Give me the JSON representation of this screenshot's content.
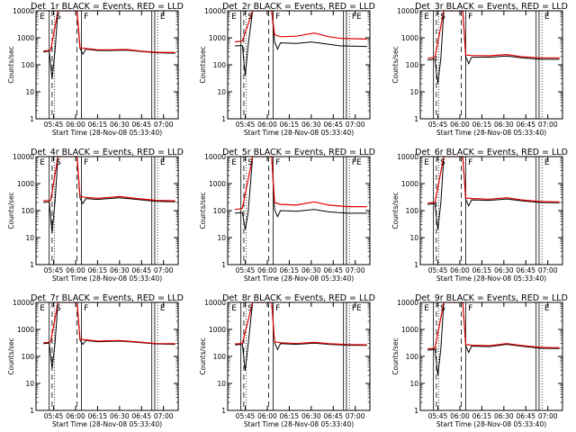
{
  "chart_data": {
    "type": "line",
    "yscale": "log",
    "ylim": [
      1,
      10000
    ],
    "yticks": [
      "1",
      "10",
      "100",
      "1000",
      "10000"
    ],
    "xticks": [
      "05:45",
      "06:00",
      "06:15",
      "06:30",
      "06:45",
      "07:00"
    ],
    "xlabel": "Start Time (28-Nov-08 05:33:40)",
    "ylabel": "Counts/sec",
    "legend_colors": {
      "events": "#000000",
      "lld": "#e00000"
    },
    "panels": [
      {
        "title": "Det_1r BLACK = Events, RED = LLD",
        "markers": [
          "E",
          "S",
          "F",
          "E"
        ],
        "events": [
          {
            "t": "05:38",
            "v": 300
          },
          {
            "t": "05:42",
            "v": 320
          },
          {
            "t": "05:44",
            "v": 30
          },
          {
            "t": "05:46",
            "v": 350
          },
          {
            "t": "05:48",
            "v": 10000
          },
          {
            "t": "06:01",
            "v": 10000
          },
          {
            "t": "06:03",
            "v": 400
          },
          {
            "t": "06:05",
            "v": 250
          },
          {
            "t": "06:07",
            "v": 380
          },
          {
            "t": "06:15",
            "v": 340
          },
          {
            "t": "06:25",
            "v": 340
          },
          {
            "t": "06:35",
            "v": 350
          },
          {
            "t": "06:45",
            "v": 310
          },
          {
            "t": "06:55",
            "v": 280
          },
          {
            "t": "07:08",
            "v": 270
          }
        ],
        "lld": [
          {
            "t": "05:38",
            "v": 320
          },
          {
            "t": "05:43",
            "v": 350
          },
          {
            "t": "05:48",
            "v": 10000
          },
          {
            "t": "06:01",
            "v": 10000
          },
          {
            "t": "06:03",
            "v": 420
          },
          {
            "t": "06:07",
            "v": 400
          },
          {
            "t": "06:15",
            "v": 360
          },
          {
            "t": "06:25",
            "v": 360
          },
          {
            "t": "06:35",
            "v": 370
          },
          {
            "t": "06:45",
            "v": 320
          },
          {
            "t": "06:55",
            "v": 290
          },
          {
            "t": "07:08",
            "v": 285
          }
        ]
      },
      {
        "title": "Det_2r BLACK = Events, RED = LLD",
        "markers": [
          "E",
          "S",
          "F",
          "FE"
        ],
        "events": [
          {
            "t": "05:38",
            "v": 500
          },
          {
            "t": "05:43",
            "v": 520
          },
          {
            "t": "05:45",
            "v": 40
          },
          {
            "t": "05:47",
            "v": 560
          },
          {
            "t": "05:50",
            "v": 10000
          },
          {
            "t": "06:03",
            "v": 10000
          },
          {
            "t": "06:05",
            "v": 700
          },
          {
            "t": "06:07",
            "v": 380
          },
          {
            "t": "06:09",
            "v": 650
          },
          {
            "t": "06:20",
            "v": 620
          },
          {
            "t": "06:30",
            "v": 700
          },
          {
            "t": "06:40",
            "v": 600
          },
          {
            "t": "06:50",
            "v": 500
          },
          {
            "t": "07:08",
            "v": 480
          }
        ],
        "lld": [
          {
            "t": "05:38",
            "v": 700
          },
          {
            "t": "05:43",
            "v": 760
          },
          {
            "t": "05:50",
            "v": 10000
          },
          {
            "t": "06:03",
            "v": 10000
          },
          {
            "t": "06:05",
            "v": 1300
          },
          {
            "t": "06:09",
            "v": 1100
          },
          {
            "t": "06:20",
            "v": 1150
          },
          {
            "t": "06:32",
            "v": 1500
          },
          {
            "t": "06:42",
            "v": 1100
          },
          {
            "t": "06:50",
            "v": 950
          },
          {
            "t": "07:08",
            "v": 900
          }
        ]
      },
      {
        "title": "Det_3r BLACK = Events, RED = LLD",
        "markers": [
          "E",
          "S",
          "F",
          "E"
        ],
        "events": [
          {
            "t": "05:38",
            "v": 150
          },
          {
            "t": "05:43",
            "v": 160
          },
          {
            "t": "05:45",
            "v": 20
          },
          {
            "t": "05:47",
            "v": 170
          },
          {
            "t": "05:49",
            "v": 10000
          },
          {
            "t": "06:02",
            "v": 10000
          },
          {
            "t": "06:04",
            "v": 200
          },
          {
            "t": "06:06",
            "v": 110
          },
          {
            "t": "06:08",
            "v": 190
          },
          {
            "t": "06:20",
            "v": 190
          },
          {
            "t": "06:32",
            "v": 210
          },
          {
            "t": "06:42",
            "v": 180
          },
          {
            "t": "06:55",
            "v": 160
          },
          {
            "t": "07:08",
            "v": 160
          }
        ],
        "lld": [
          {
            "t": "05:38",
            "v": 175
          },
          {
            "t": "05:43",
            "v": 185
          },
          {
            "t": "05:49",
            "v": 10000
          },
          {
            "t": "06:02",
            "v": 10000
          },
          {
            "t": "06:04",
            "v": 230
          },
          {
            "t": "06:08",
            "v": 220
          },
          {
            "t": "06:20",
            "v": 215
          },
          {
            "t": "06:32",
            "v": 240
          },
          {
            "t": "06:42",
            "v": 200
          },
          {
            "t": "06:55",
            "v": 180
          },
          {
            "t": "07:08",
            "v": 180
          }
        ]
      },
      {
        "title": "Det_4r BLACK = Events, RED = LLD",
        "markers": [
          "E",
          "S",
          "F",
          "E"
        ],
        "events": [
          {
            "t": "05:38",
            "v": 200
          },
          {
            "t": "05:42",
            "v": 210
          },
          {
            "t": "05:44",
            "v": 15
          },
          {
            "t": "05:46",
            "v": 230
          },
          {
            "t": "05:48",
            "v": 10000
          },
          {
            "t": "06:01",
            "v": 10000
          },
          {
            "t": "06:03",
            "v": 290
          },
          {
            "t": "06:05",
            "v": 180
          },
          {
            "t": "06:07",
            "v": 280
          },
          {
            "t": "06:15",
            "v": 260
          },
          {
            "t": "06:30",
            "v": 300
          },
          {
            "t": "06:42",
            "v": 260
          },
          {
            "t": "06:55",
            "v": 220
          },
          {
            "t": "07:08",
            "v": 210
          }
        ],
        "lld": [
          {
            "t": "05:38",
            "v": 230
          },
          {
            "t": "05:43",
            "v": 240
          },
          {
            "t": "05:48",
            "v": 10000
          },
          {
            "t": "06:01",
            "v": 10000
          },
          {
            "t": "06:03",
            "v": 330
          },
          {
            "t": "06:07",
            "v": 310
          },
          {
            "t": "06:15",
            "v": 285
          },
          {
            "t": "06:30",
            "v": 330
          },
          {
            "t": "06:42",
            "v": 280
          },
          {
            "t": "06:55",
            "v": 240
          },
          {
            "t": "07:08",
            "v": 230
          }
        ]
      },
      {
        "title": "Det_5r BLACK = Events, RED = LLD",
        "markers": [
          "E",
          "S",
          "F",
          "FE"
        ],
        "events": [
          {
            "t": "05:38",
            "v": 80
          },
          {
            "t": "05:43",
            "v": 85
          },
          {
            "t": "05:45",
            "v": 20
          },
          {
            "t": "05:47",
            "v": 90
          },
          {
            "t": "05:50",
            "v": 10000
          },
          {
            "t": "06:03",
            "v": 10000
          },
          {
            "t": "06:05",
            "v": 110
          },
          {
            "t": "06:07",
            "v": 60
          },
          {
            "t": "06:09",
            "v": 100
          },
          {
            "t": "06:20",
            "v": 95
          },
          {
            "t": "06:32",
            "v": 110
          },
          {
            "t": "06:42",
            "v": 90
          },
          {
            "t": "06:55",
            "v": 80
          },
          {
            "t": "07:08",
            "v": 80
          }
        ],
        "lld": [
          {
            "t": "05:38",
            "v": 110
          },
          {
            "t": "05:43",
            "v": 120
          },
          {
            "t": "05:50",
            "v": 10000
          },
          {
            "t": "06:03",
            "v": 10000
          },
          {
            "t": "06:05",
            "v": 200
          },
          {
            "t": "06:09",
            "v": 170
          },
          {
            "t": "06:20",
            "v": 160
          },
          {
            "t": "06:32",
            "v": 210
          },
          {
            "t": "06:42",
            "v": 160
          },
          {
            "t": "06:55",
            "v": 140
          },
          {
            "t": "07:08",
            "v": 140
          }
        ]
      },
      {
        "title": "Det_6r BLACK = Events, RED = LLD",
        "markers": [
          "E",
          "S",
          "F",
          "E"
        ],
        "events": [
          {
            "t": "05:38",
            "v": 170
          },
          {
            "t": "05:43",
            "v": 180
          },
          {
            "t": "05:45",
            "v": 20
          },
          {
            "t": "05:47",
            "v": 190
          },
          {
            "t": "05:49",
            "v": 10000
          },
          {
            "t": "06:02",
            "v": 10000
          },
          {
            "t": "06:04",
            "v": 260
          },
          {
            "t": "06:06",
            "v": 150
          },
          {
            "t": "06:08",
            "v": 250
          },
          {
            "t": "06:20",
            "v": 240
          },
          {
            "t": "06:32",
            "v": 270
          },
          {
            "t": "06:42",
            "v": 230
          },
          {
            "t": "06:55",
            "v": 200
          },
          {
            "t": "07:08",
            "v": 195
          }
        ],
        "lld": [
          {
            "t": "05:38",
            "v": 190
          },
          {
            "t": "05:43",
            "v": 200
          },
          {
            "t": "05:49",
            "v": 10000
          },
          {
            "t": "06:02",
            "v": 10000
          },
          {
            "t": "06:04",
            "v": 290
          },
          {
            "t": "06:08",
            "v": 280
          },
          {
            "t": "06:20",
            "v": 265
          },
          {
            "t": "06:32",
            "v": 300
          },
          {
            "t": "06:42",
            "v": 250
          },
          {
            "t": "06:55",
            "v": 215
          },
          {
            "t": "07:08",
            "v": 210
          }
        ]
      },
      {
        "title": "Det_7r BLACK = Events, RED = LLD",
        "markers": [
          "E",
          "S",
          "F",
          "E"
        ],
        "events": [
          {
            "t": "05:38",
            "v": 300
          },
          {
            "t": "05:42",
            "v": 310
          },
          {
            "t": "05:44",
            "v": 35
          },
          {
            "t": "05:46",
            "v": 330
          },
          {
            "t": "05:48",
            "v": 10000
          },
          {
            "t": "06:01",
            "v": 10000
          },
          {
            "t": "06:03",
            "v": 400
          },
          {
            "t": "06:05",
            "v": 280
          },
          {
            "t": "06:07",
            "v": 390
          },
          {
            "t": "06:15",
            "v": 350
          },
          {
            "t": "06:30",
            "v": 370
          },
          {
            "t": "06:42",
            "v": 330
          },
          {
            "t": "06:55",
            "v": 290
          },
          {
            "t": "07:08",
            "v": 280
          }
        ],
        "lld": [
          {
            "t": "05:38",
            "v": 320
          },
          {
            "t": "05:43",
            "v": 340
          },
          {
            "t": "05:48",
            "v": 10000
          },
          {
            "t": "06:01",
            "v": 10000
          },
          {
            "t": "06:03",
            "v": 430
          },
          {
            "t": "06:07",
            "v": 410
          },
          {
            "t": "06:15",
            "v": 370
          },
          {
            "t": "06:30",
            "v": 390
          },
          {
            "t": "06:42",
            "v": 345
          },
          {
            "t": "06:55",
            "v": 300
          },
          {
            "t": "07:08",
            "v": 295
          }
        ]
      },
      {
        "title": "Det_8r BLACK = Events, RED = LLD",
        "markers": [
          "E",
          "S",
          "F",
          "FE"
        ],
        "events": [
          {
            "t": "05:38",
            "v": 270
          },
          {
            "t": "05:43",
            "v": 280
          },
          {
            "t": "05:45",
            "v": 30
          },
          {
            "t": "05:47",
            "v": 290
          },
          {
            "t": "05:50",
            "v": 10000
          },
          {
            "t": "06:03",
            "v": 10000
          },
          {
            "t": "06:05",
            "v": 320
          },
          {
            "t": "06:07",
            "v": 180
          },
          {
            "t": "06:09",
            "v": 300
          },
          {
            "t": "06:20",
            "v": 280
          },
          {
            "t": "06:32",
            "v": 310
          },
          {
            "t": "06:42",
            "v": 280
          },
          {
            "t": "06:55",
            "v": 260
          },
          {
            "t": "07:08",
            "v": 255
          }
        ],
        "lld": [
          {
            "t": "05:38",
            "v": 290
          },
          {
            "t": "05:43",
            "v": 300
          },
          {
            "t": "05:50",
            "v": 10000
          },
          {
            "t": "06:03",
            "v": 10000
          },
          {
            "t": "06:05",
            "v": 350
          },
          {
            "t": "06:09",
            "v": 320
          },
          {
            "t": "06:20",
            "v": 300
          },
          {
            "t": "06:32",
            "v": 330
          },
          {
            "t": "06:42",
            "v": 295
          },
          {
            "t": "06:55",
            "v": 275
          },
          {
            "t": "07:08",
            "v": 270
          }
        ]
      },
      {
        "title": "Det_9r BLACK = Events, RED = LLD",
        "markers": [
          "E",
          "S",
          "F",
          "E"
        ],
        "events": [
          {
            "t": "05:38",
            "v": 170
          },
          {
            "t": "05:43",
            "v": 180
          },
          {
            "t": "05:45",
            "v": 20
          },
          {
            "t": "05:47",
            "v": 185
          },
          {
            "t": "05:49",
            "v": 10000
          },
          {
            "t": "06:02",
            "v": 10000
          },
          {
            "t": "06:04",
            "v": 250
          },
          {
            "t": "06:06",
            "v": 140
          },
          {
            "t": "06:08",
            "v": 240
          },
          {
            "t": "06:20",
            "v": 230
          },
          {
            "t": "06:32",
            "v": 280
          },
          {
            "t": "06:42",
            "v": 240
          },
          {
            "t": "06:55",
            "v": 200
          },
          {
            "t": "07:08",
            "v": 195
          }
        ],
        "lld": [
          {
            "t": "05:38",
            "v": 190
          },
          {
            "t": "05:43",
            "v": 200
          },
          {
            "t": "05:49",
            "v": 10000
          },
          {
            "t": "06:02",
            "v": 10000
          },
          {
            "t": "06:04",
            "v": 280
          },
          {
            "t": "06:08",
            "v": 260
          },
          {
            "t": "06:20",
            "v": 250
          },
          {
            "t": "06:32",
            "v": 300
          },
          {
            "t": "06:42",
            "v": 255
          },
          {
            "t": "06:55",
            "v": 215
          },
          {
            "t": "07:08",
            "v": 210
          }
        ]
      }
    ]
  }
}
